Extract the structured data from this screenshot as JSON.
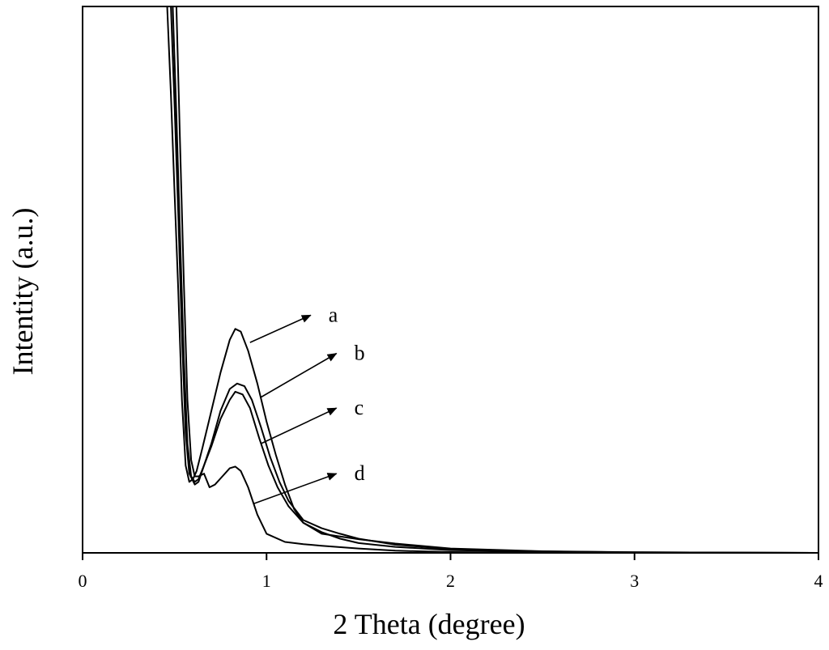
{
  "chart_data": {
    "type": "line",
    "title": "",
    "xlabel": "2 Theta (degree)",
    "ylabel": "Intentity (a.u.)",
    "xlim": [
      0,
      4
    ],
    "x_ticks": [
      0,
      1,
      2,
      3,
      4
    ],
    "x_tick_labels": [
      "0",
      "1",
      "2",
      "3",
      "4"
    ],
    "y_scale": "arbitrary units (no tick labels)",
    "ylim": [
      0,
      100
    ],
    "grid": false,
    "legend": "none; curves labeled inline with arrows",
    "series": [
      {
        "name": "a",
        "points": [
          [
            0.46,
            100
          ],
          [
            0.48,
            84
          ],
          [
            0.5,
            66
          ],
          [
            0.52,
            48
          ],
          [
            0.54,
            28
          ],
          [
            0.56,
            16
          ],
          [
            0.58,
            13
          ],
          [
            0.6,
            13.5
          ],
          [
            0.62,
            15
          ],
          [
            0.65,
            19
          ],
          [
            0.7,
            26
          ],
          [
            0.75,
            33
          ],
          [
            0.8,
            39
          ],
          [
            0.83,
            41
          ],
          [
            0.86,
            40.5
          ],
          [
            0.9,
            37
          ],
          [
            0.95,
            31
          ],
          [
            1.0,
            24
          ],
          [
            1.05,
            18
          ],
          [
            1.1,
            12.5
          ],
          [
            1.15,
            8
          ],
          [
            1.2,
            5.5
          ],
          [
            1.3,
            3.5
          ],
          [
            1.4,
            3
          ],
          [
            1.5,
            2.5
          ],
          [
            1.7,
            1.7
          ],
          [
            2.0,
            0.8
          ],
          [
            2.5,
            0.3
          ],
          [
            3.0,
            0.1
          ],
          [
            4.0,
            0
          ]
        ]
      },
      {
        "name": "b",
        "points": [
          [
            0.48,
            100
          ],
          [
            0.5,
            82
          ],
          [
            0.52,
            62
          ],
          [
            0.54,
            40
          ],
          [
            0.56,
            22
          ],
          [
            0.58,
            14.5
          ],
          [
            0.61,
            12.5
          ],
          [
            0.63,
            13
          ],
          [
            0.66,
            16
          ],
          [
            0.7,
            20
          ],
          [
            0.75,
            26
          ],
          [
            0.8,
            30
          ],
          [
            0.84,
            31
          ],
          [
            0.88,
            30.5
          ],
          [
            0.92,
            28
          ],
          [
            0.97,
            23
          ],
          [
            1.02,
            17.5
          ],
          [
            1.07,
            13
          ],
          [
            1.12,
            9.5
          ],
          [
            1.2,
            6
          ],
          [
            1.3,
            4.5
          ],
          [
            1.4,
            3.5
          ],
          [
            1.5,
            2.6
          ],
          [
            1.7,
            1.5
          ],
          [
            2.0,
            0.7
          ],
          [
            2.5,
            0.25
          ],
          [
            3.0,
            0.1
          ],
          [
            4.0,
            0
          ]
        ]
      },
      {
        "name": "c",
        "points": [
          [
            0.49,
            100
          ],
          [
            0.51,
            80
          ],
          [
            0.53,
            58
          ],
          [
            0.55,
            36
          ],
          [
            0.57,
            20
          ],
          [
            0.59,
            14
          ],
          [
            0.61,
            13
          ],
          [
            0.63,
            13.5
          ],
          [
            0.66,
            16
          ],
          [
            0.7,
            19.5
          ],
          [
            0.75,
            24.5
          ],
          [
            0.8,
            28
          ],
          [
            0.83,
            29.5
          ],
          [
            0.87,
            29
          ],
          [
            0.91,
            26.5
          ],
          [
            0.96,
            21
          ],
          [
            1.01,
            16
          ],
          [
            1.06,
            12
          ],
          [
            1.12,
            8.5
          ],
          [
            1.2,
            5.5
          ],
          [
            1.3,
            3.8
          ],
          [
            1.4,
            2.6
          ],
          [
            1.5,
            1.8
          ],
          [
            1.7,
            1.1
          ],
          [
            2.0,
            0.5
          ],
          [
            2.5,
            0.2
          ],
          [
            3.0,
            0.05
          ],
          [
            4.0,
            0
          ]
        ]
      },
      {
        "name": "d",
        "points": [
          [
            0.51,
            100
          ],
          [
            0.53,
            75
          ],
          [
            0.55,
            50
          ],
          [
            0.57,
            28
          ],
          [
            0.59,
            17
          ],
          [
            0.61,
            14
          ],
          [
            0.63,
            14
          ],
          [
            0.66,
            14.5
          ],
          [
            0.69,
            12
          ],
          [
            0.72,
            12.5
          ],
          [
            0.76,
            14
          ],
          [
            0.8,
            15.5
          ],
          [
            0.83,
            15.8
          ],
          [
            0.86,
            15
          ],
          [
            0.9,
            12
          ],
          [
            0.95,
            7
          ],
          [
            1.0,
            3.5
          ],
          [
            1.1,
            2
          ],
          [
            1.2,
            1.6
          ],
          [
            1.3,
            1.3
          ],
          [
            1.5,
            0.8
          ],
          [
            1.7,
            0.4
          ],
          [
            2.0,
            0.15
          ],
          [
            2.5,
            0.05
          ],
          [
            4.0,
            0
          ]
        ]
      }
    ],
    "annotations": [
      {
        "label": "a",
        "arrow_from": [
          0.91,
          38.5
        ],
        "arrow_to": [
          1.24,
          43.5
        ]
      },
      {
        "label": "b",
        "arrow_from": [
          0.97,
          28.5
        ],
        "arrow_to": [
          1.38,
          36.5
        ]
      },
      {
        "label": "c",
        "arrow_from": [
          0.97,
          20.0
        ],
        "arrow_to": [
          1.38,
          26.5
        ]
      },
      {
        "label": "d",
        "arrow_from": [
          0.93,
          9.0
        ],
        "arrow_to": [
          1.38,
          14.5
        ]
      }
    ]
  }
}
